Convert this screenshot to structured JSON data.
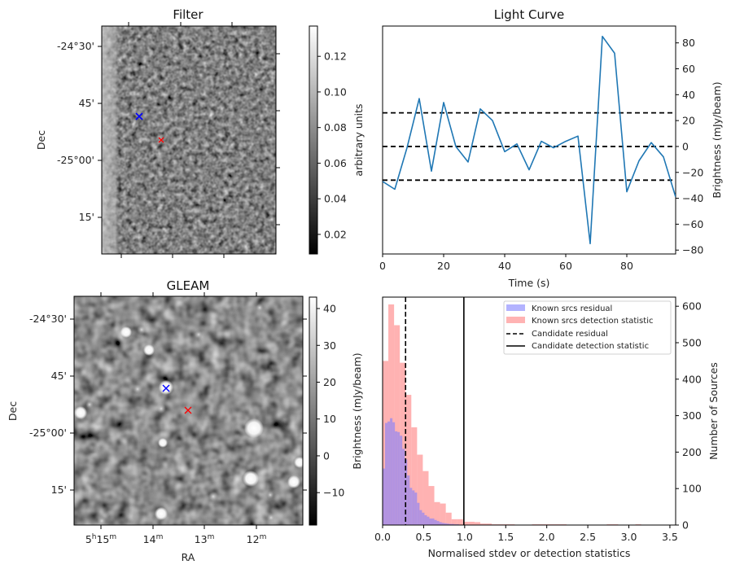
{
  "chart_data": [
    {
      "id": "filter",
      "type": "heatmap",
      "title": "Filter",
      "xlabel": "",
      "ylabel": "Dec",
      "ytick_labels": [
        "-24°30'",
        "45'",
        "-25°00'",
        "15'"
      ],
      "colorbar": {
        "label": "arbitrary units",
        "range": [
          0.009,
          0.137
        ],
        "ticks": [
          0.02,
          0.04,
          0.06,
          0.08,
          0.1,
          0.12
        ],
        "tick_labels": [
          "0.02",
          "0.04",
          "0.06",
          "0.08",
          "0.10",
          "0.12"
        ],
        "colormap": "gray"
      },
      "markers": [
        {
          "name": "known-source",
          "symbol": "x",
          "color": "#0000ff"
        },
        {
          "name": "candidate",
          "symbol": "x",
          "color": "#ff0000"
        }
      ]
    },
    {
      "id": "light-curve",
      "type": "line",
      "title": "Light Curve",
      "xlabel": "Time (s)",
      "ylabel": "Brightness (mJy/beam)",
      "xlim": [
        0,
        96
      ],
      "ylim": [
        -83,
        93
      ],
      "xticks": [
        0,
        20,
        40,
        60,
        80
      ],
      "yticks": [
        -80,
        -60,
        -40,
        -20,
        0,
        20,
        40,
        60,
        80
      ],
      "ytick_labels": [
        "−80",
        "−60",
        "−40",
        "−20",
        "0",
        "20",
        "40",
        "60",
        "80"
      ],
      "x": [
        0,
        4,
        8,
        12,
        16,
        20,
        24,
        28,
        32,
        36,
        40,
        44,
        48,
        52,
        56,
        60,
        64,
        68,
        72,
        76,
        80,
        84,
        88,
        92,
        96
      ],
      "series": [
        {
          "name": "light curve",
          "color": "#1f77b4",
          "values": [
            -27,
            -33,
            -1,
            37,
            -19,
            34,
            0,
            -12,
            29,
            20,
            -4,
            2,
            -18,
            4,
            -1,
            4,
            8,
            -75,
            85,
            72,
            -35,
            -11,
            3,
            -8,
            -39
          ]
        }
      ],
      "hlines": [
        {
          "y": 26,
          "style": "dashed",
          "color": "#000000"
        },
        {
          "y": 0,
          "style": "dashed",
          "color": "#000000"
        },
        {
          "y": -26,
          "style": "dashed",
          "color": "#000000"
        }
      ],
      "yaxis_side": "right"
    },
    {
      "id": "gleam",
      "type": "heatmap",
      "title": "GLEAM",
      "xlabel": "RA",
      "ylabel": "Dec",
      "xtick_labels": [
        {
          "main": "5",
          "sup1": "h",
          "main2": "15",
          "sup2": "m"
        },
        {
          "main": "",
          "sup1": "",
          "main2": "14",
          "sup2": "m"
        },
        {
          "main": "",
          "sup1": "",
          "main2": "13",
          "sup2": "m"
        },
        {
          "main": "",
          "sup1": "",
          "main2": "12",
          "sup2": "m"
        }
      ],
      "ytick_labels": [
        "-24°30'",
        "45'",
        "-25°00'",
        "15'"
      ],
      "colorbar": {
        "label": "Brightness (mJy/beam)",
        "range": [
          -18.8,
          43.1
        ],
        "ticks": [
          -10,
          0,
          10,
          20,
          30,
          40
        ],
        "tick_labels": [
          "−10",
          "0",
          "10",
          "20",
          "30",
          "40"
        ],
        "colormap": "gray"
      },
      "markers": [
        {
          "name": "known-source",
          "symbol": "x",
          "color": "#0000ff"
        },
        {
          "name": "candidate",
          "symbol": "x",
          "color": "#ff0000"
        }
      ]
    },
    {
      "id": "histogram",
      "type": "bar",
      "title": "",
      "xlabel": "Normalised stdev or detection statistics",
      "ylabel_left": "Brightness (mJy/beam)",
      "ylabel": "Number of Sources",
      "xlim": [
        0,
        3.57
      ],
      "ylim": [
        0,
        625
      ],
      "xticks": [
        0.0,
        0.5,
        1.0,
        1.5,
        2.0,
        2.5,
        3.0,
        3.5
      ],
      "xtick_labels": [
        "0.0",
        "0.5",
        "1.0",
        "1.5",
        "2.0",
        "2.5",
        "3.0",
        "3.5"
      ],
      "yticks": [
        0,
        100,
        200,
        300,
        400,
        500,
        600
      ],
      "series": [
        {
          "name": "Known srcs residual",
          "color": "#7f7fff",
          "alpha": 0.6,
          "bin_width": 0.03,
          "bin_start": 0.0,
          "values": [
            155,
            280,
            284,
            293,
            282,
            257,
            255,
            245,
            209,
            180,
            136,
            102,
            95,
            89,
            61,
            41,
            34,
            27,
            23,
            18,
            18,
            14,
            11,
            8,
            6,
            5,
            4,
            3,
            3,
            2,
            2,
            1,
            1,
            1
          ]
        },
        {
          "name": "Known srcs detection statistic",
          "color": "#ff7f7f",
          "alpha": 0.6,
          "bin_width": 0.07,
          "bin_start": 0.0,
          "values": [
            450,
            605,
            548,
            445,
            357,
            268,
            193,
            148,
            107,
            63,
            59,
            34,
            16,
            16,
            9,
            9,
            8,
            4,
            4,
            2,
            2,
            2,
            2,
            0,
            0,
            0,
            2,
            2,
            2,
            2,
            2,
            2,
            0,
            0,
            0,
            0,
            0,
            0,
            0,
            2,
            2,
            0,
            0,
            0,
            2,
            0,
            0,
            0,
            0,
            0,
            0,
            0,
            0,
            0,
            0,
            0,
            0,
            2
          ]
        }
      ],
      "vlines": [
        {
          "name": "Candidate residual",
          "x": 0.28,
          "style": "dashed",
          "color": "#000000"
        },
        {
          "name": "Candidate detection statistic",
          "x": 0.99,
          "style": "solid",
          "color": "#000000"
        }
      ],
      "legend": {
        "position": "top-right",
        "entries": [
          {
            "label": "Known srcs residual",
            "kind": "patch",
            "color": "#b3b3ff"
          },
          {
            "label": "Known srcs detection statistic",
            "kind": "patch",
            "color": "#ffb3b3"
          },
          {
            "label": "Candidate residual",
            "kind": "dashed"
          },
          {
            "label": "Candidate detection statistic",
            "kind": "solid"
          }
        ]
      }
    }
  ]
}
